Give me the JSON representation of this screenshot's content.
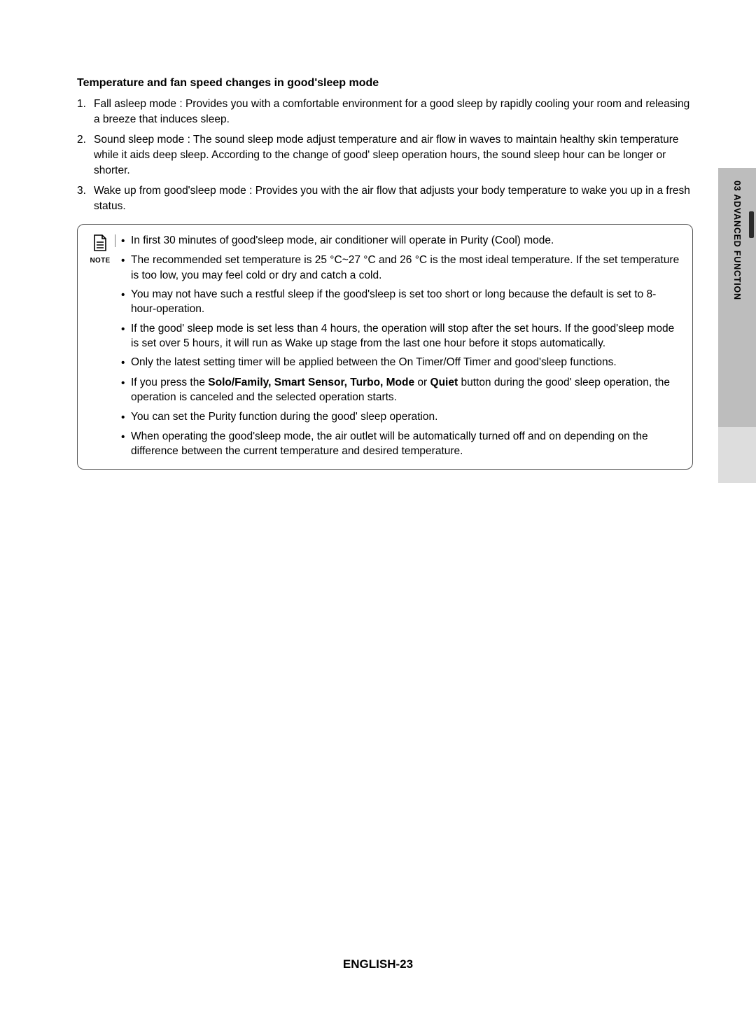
{
  "section_title": "Temperature and fan speed changes in good'sleep mode",
  "numbered": [
    {
      "n": "1.",
      "text": "Fall asleep mode : Provides you with a comfortable environment for a good sleep by rapidly cooling your room and releasing a breeze that induces sleep."
    },
    {
      "n": "2.",
      "text": "Sound sleep mode : The sound sleep mode adjust temperature and air flow in waves to maintain healthy skin temperature while it aids deep sleep. According to the change of good' sleep operation hours, the sound sleep hour can be longer or shorter."
    },
    {
      "n": "3.",
      "text": "Wake up from good'sleep mode : Provides you with the air flow that adjusts your body temperature to wake you up in a fresh status."
    }
  ],
  "note_label": "NOTE",
  "note_bullets": [
    "In first 30 minutes of good'sleep mode, air conditioner will operate in Purity (Cool) mode.",
    "The recommended set temperature is 25 °C~27 °C and 26 °C is the most ideal temperature. If the set temperature is too low, you may feel cold or dry and catch a cold.",
    "You may not have such a restful sleep if the good'sleep is set too short or long because the default is set to 8-hour-operation.",
    "If the good' sleep mode is set less than 4 hours, the operation will stop after the set hours. If the good'sleep mode is set over 5 hours, it will run as Wake up stage from the last one hour before it stops automatically.",
    "Only the latest setting timer will be applied between the On Timer/Off Timer and good'sleep functions.",
    "You can set the Purity function during the good' sleep operation.",
    "When operating the good'sleep mode, the air outlet will be automatically turned off and on depending on the difference between the current temperature and desired temperature."
  ],
  "bullet_with_bold": {
    "pre": "If you press the ",
    "bold": "Solo/Family, Smart Sensor, Turbo, Mode",
    "mid": " or ",
    "bold2": "Quiet",
    "post": " button during the good' sleep operation, the operation is canceled and the selected operation starts."
  },
  "bullet_with_bold_index": 4,
  "side_tab": "03   ADVANCED FUNCTION",
  "footer": "ENGLISH-23"
}
